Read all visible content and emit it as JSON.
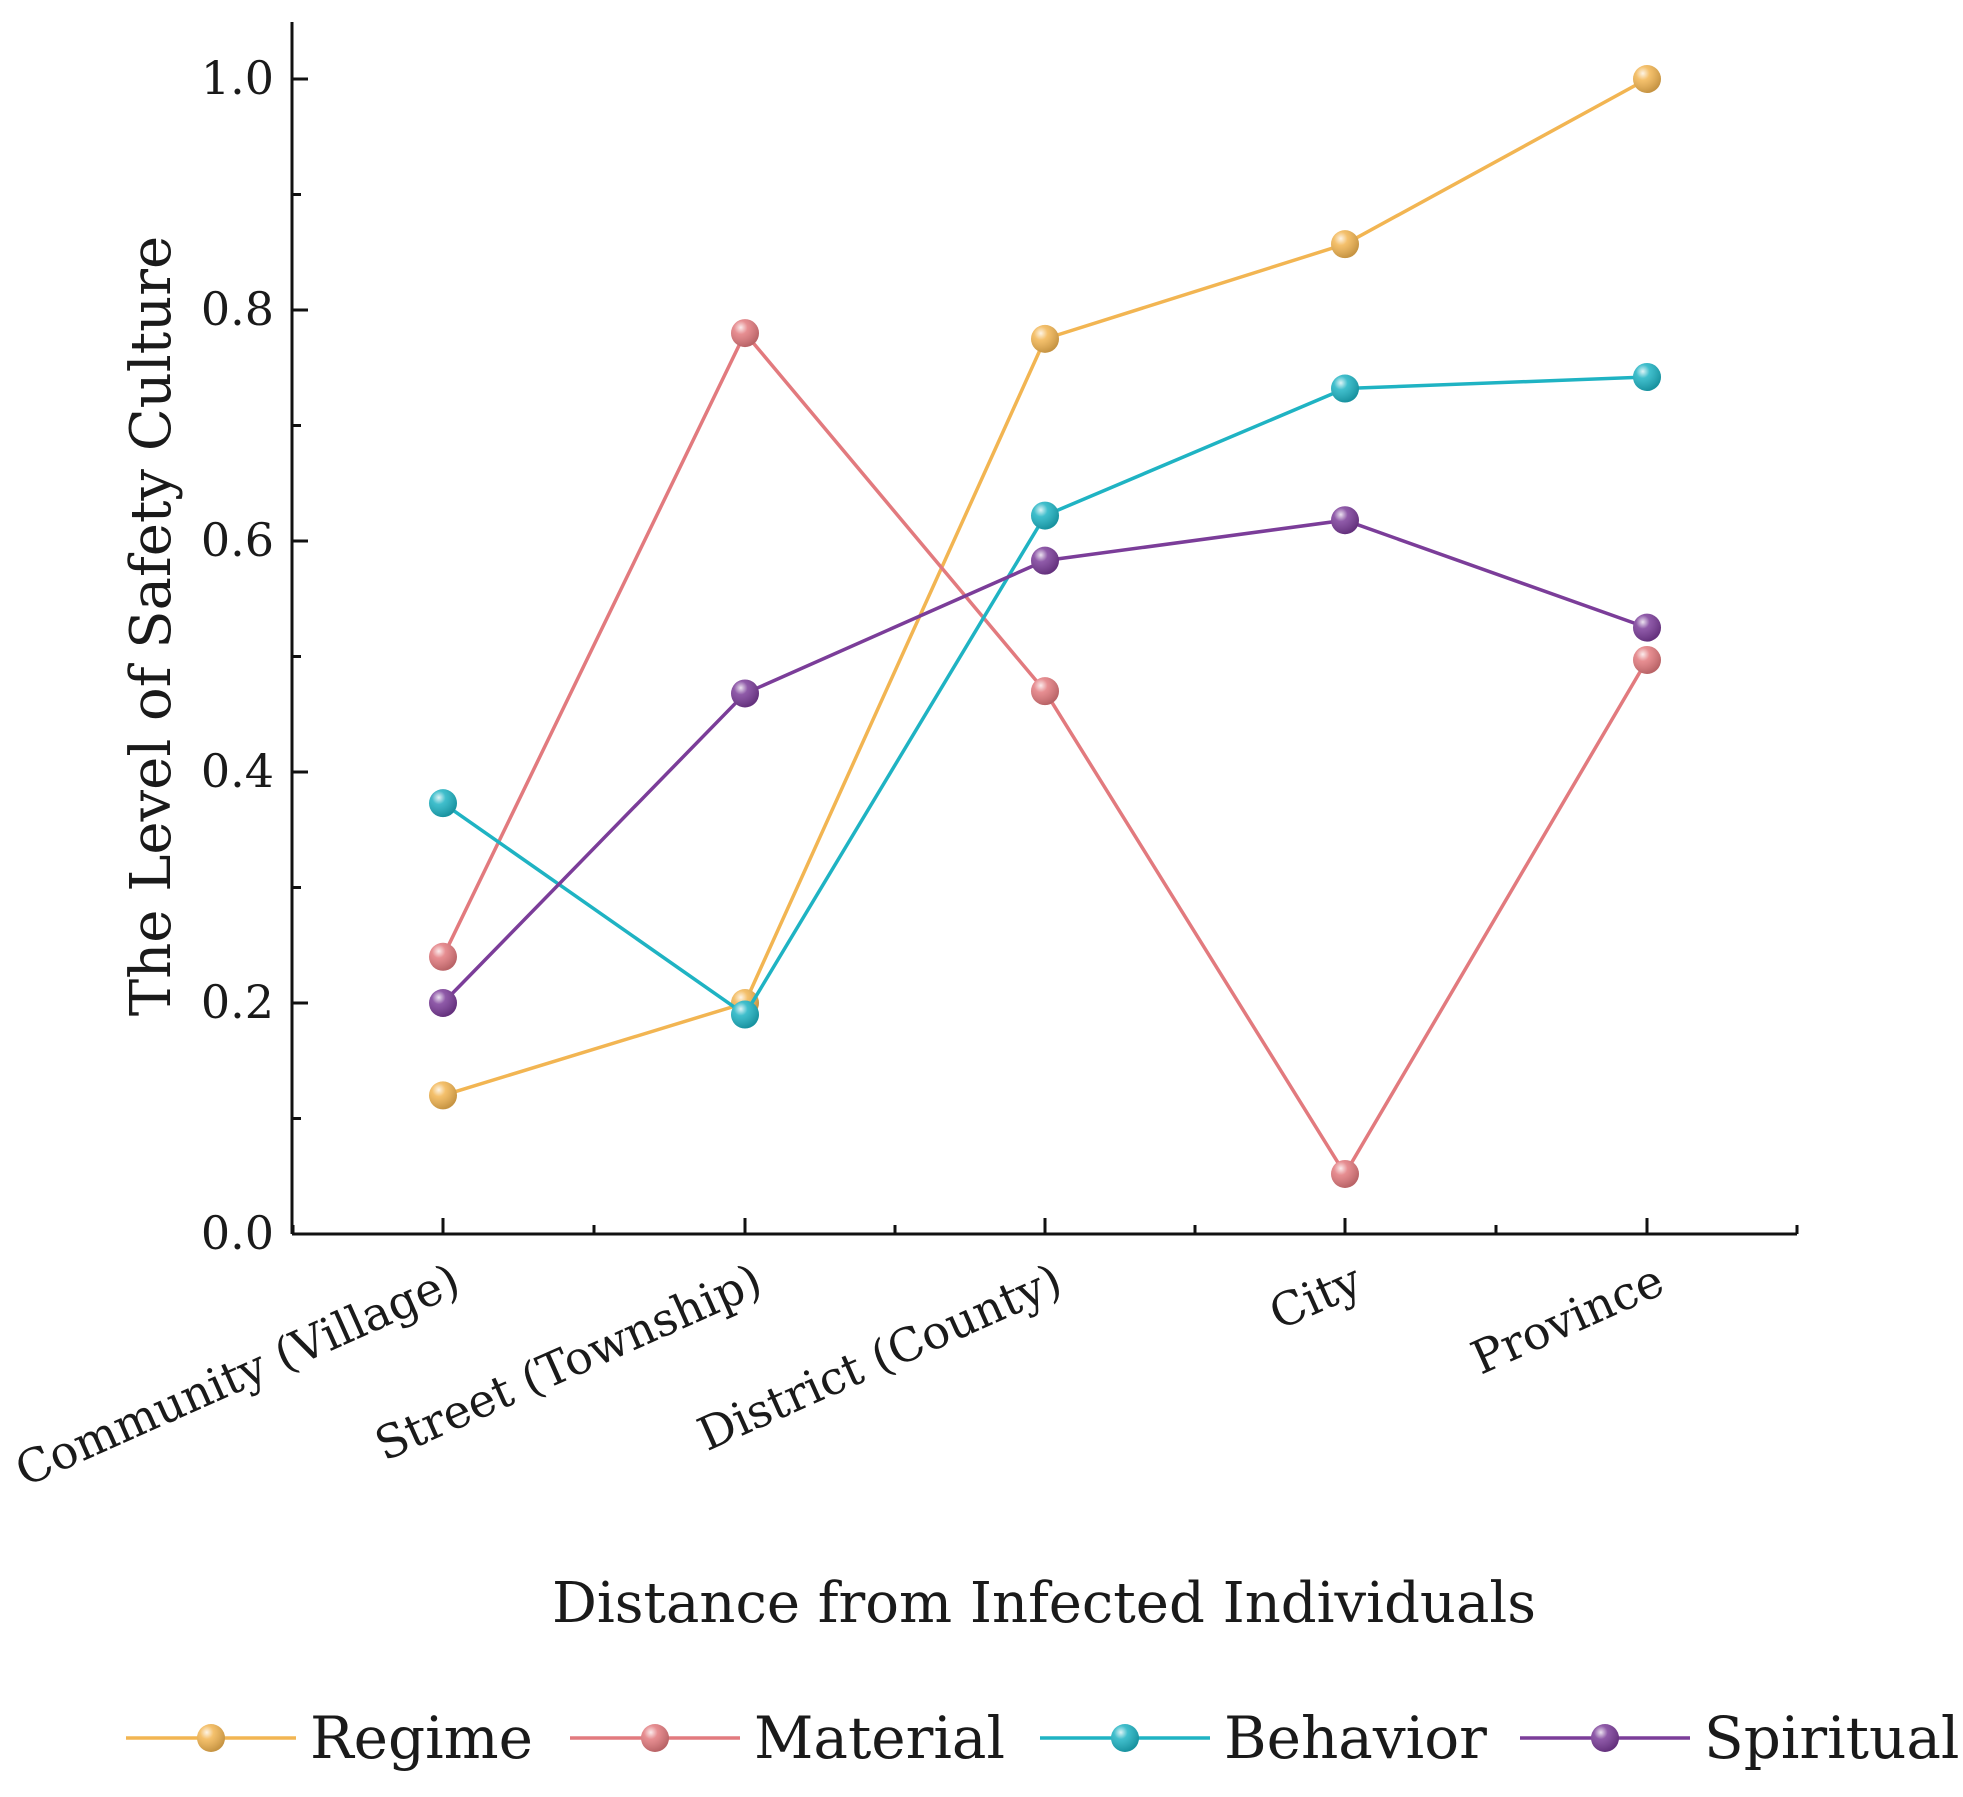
{
  "chart_data": {
    "type": "line",
    "title": "",
    "xlabel": "Distance from Infected Individuals",
    "ylabel": "The Level of Safety Culture",
    "categories": [
      "Community (Village)",
      "Street (Township)",
      "District (County)",
      "City",
      "Province"
    ],
    "ylim": [
      0,
      1.05
    ],
    "yticks": [
      "0.0",
      "0.2",
      "0.4",
      "0.6",
      "0.8",
      "1.0"
    ],
    "grid": false,
    "legend_position": "bottom",
    "series": [
      {
        "name": "Regime",
        "color": "#F2B552",
        "values": [
          0.12,
          0.2,
          0.775,
          0.857,
          1.0
        ]
      },
      {
        "name": "Material",
        "color": "#E27A7E",
        "values": [
          0.24,
          0.78,
          0.47,
          0.052,
          0.497
        ]
      },
      {
        "name": "Behavior",
        "color": "#1FB3C3",
        "values": [
          0.373,
          0.19,
          0.622,
          0.732,
          0.742
        ]
      },
      {
        "name": "Spiritual",
        "color": "#7B3D99",
        "values": [
          0.2,
          0.468,
          0.583,
          0.618,
          0.525
        ]
      }
    ]
  }
}
